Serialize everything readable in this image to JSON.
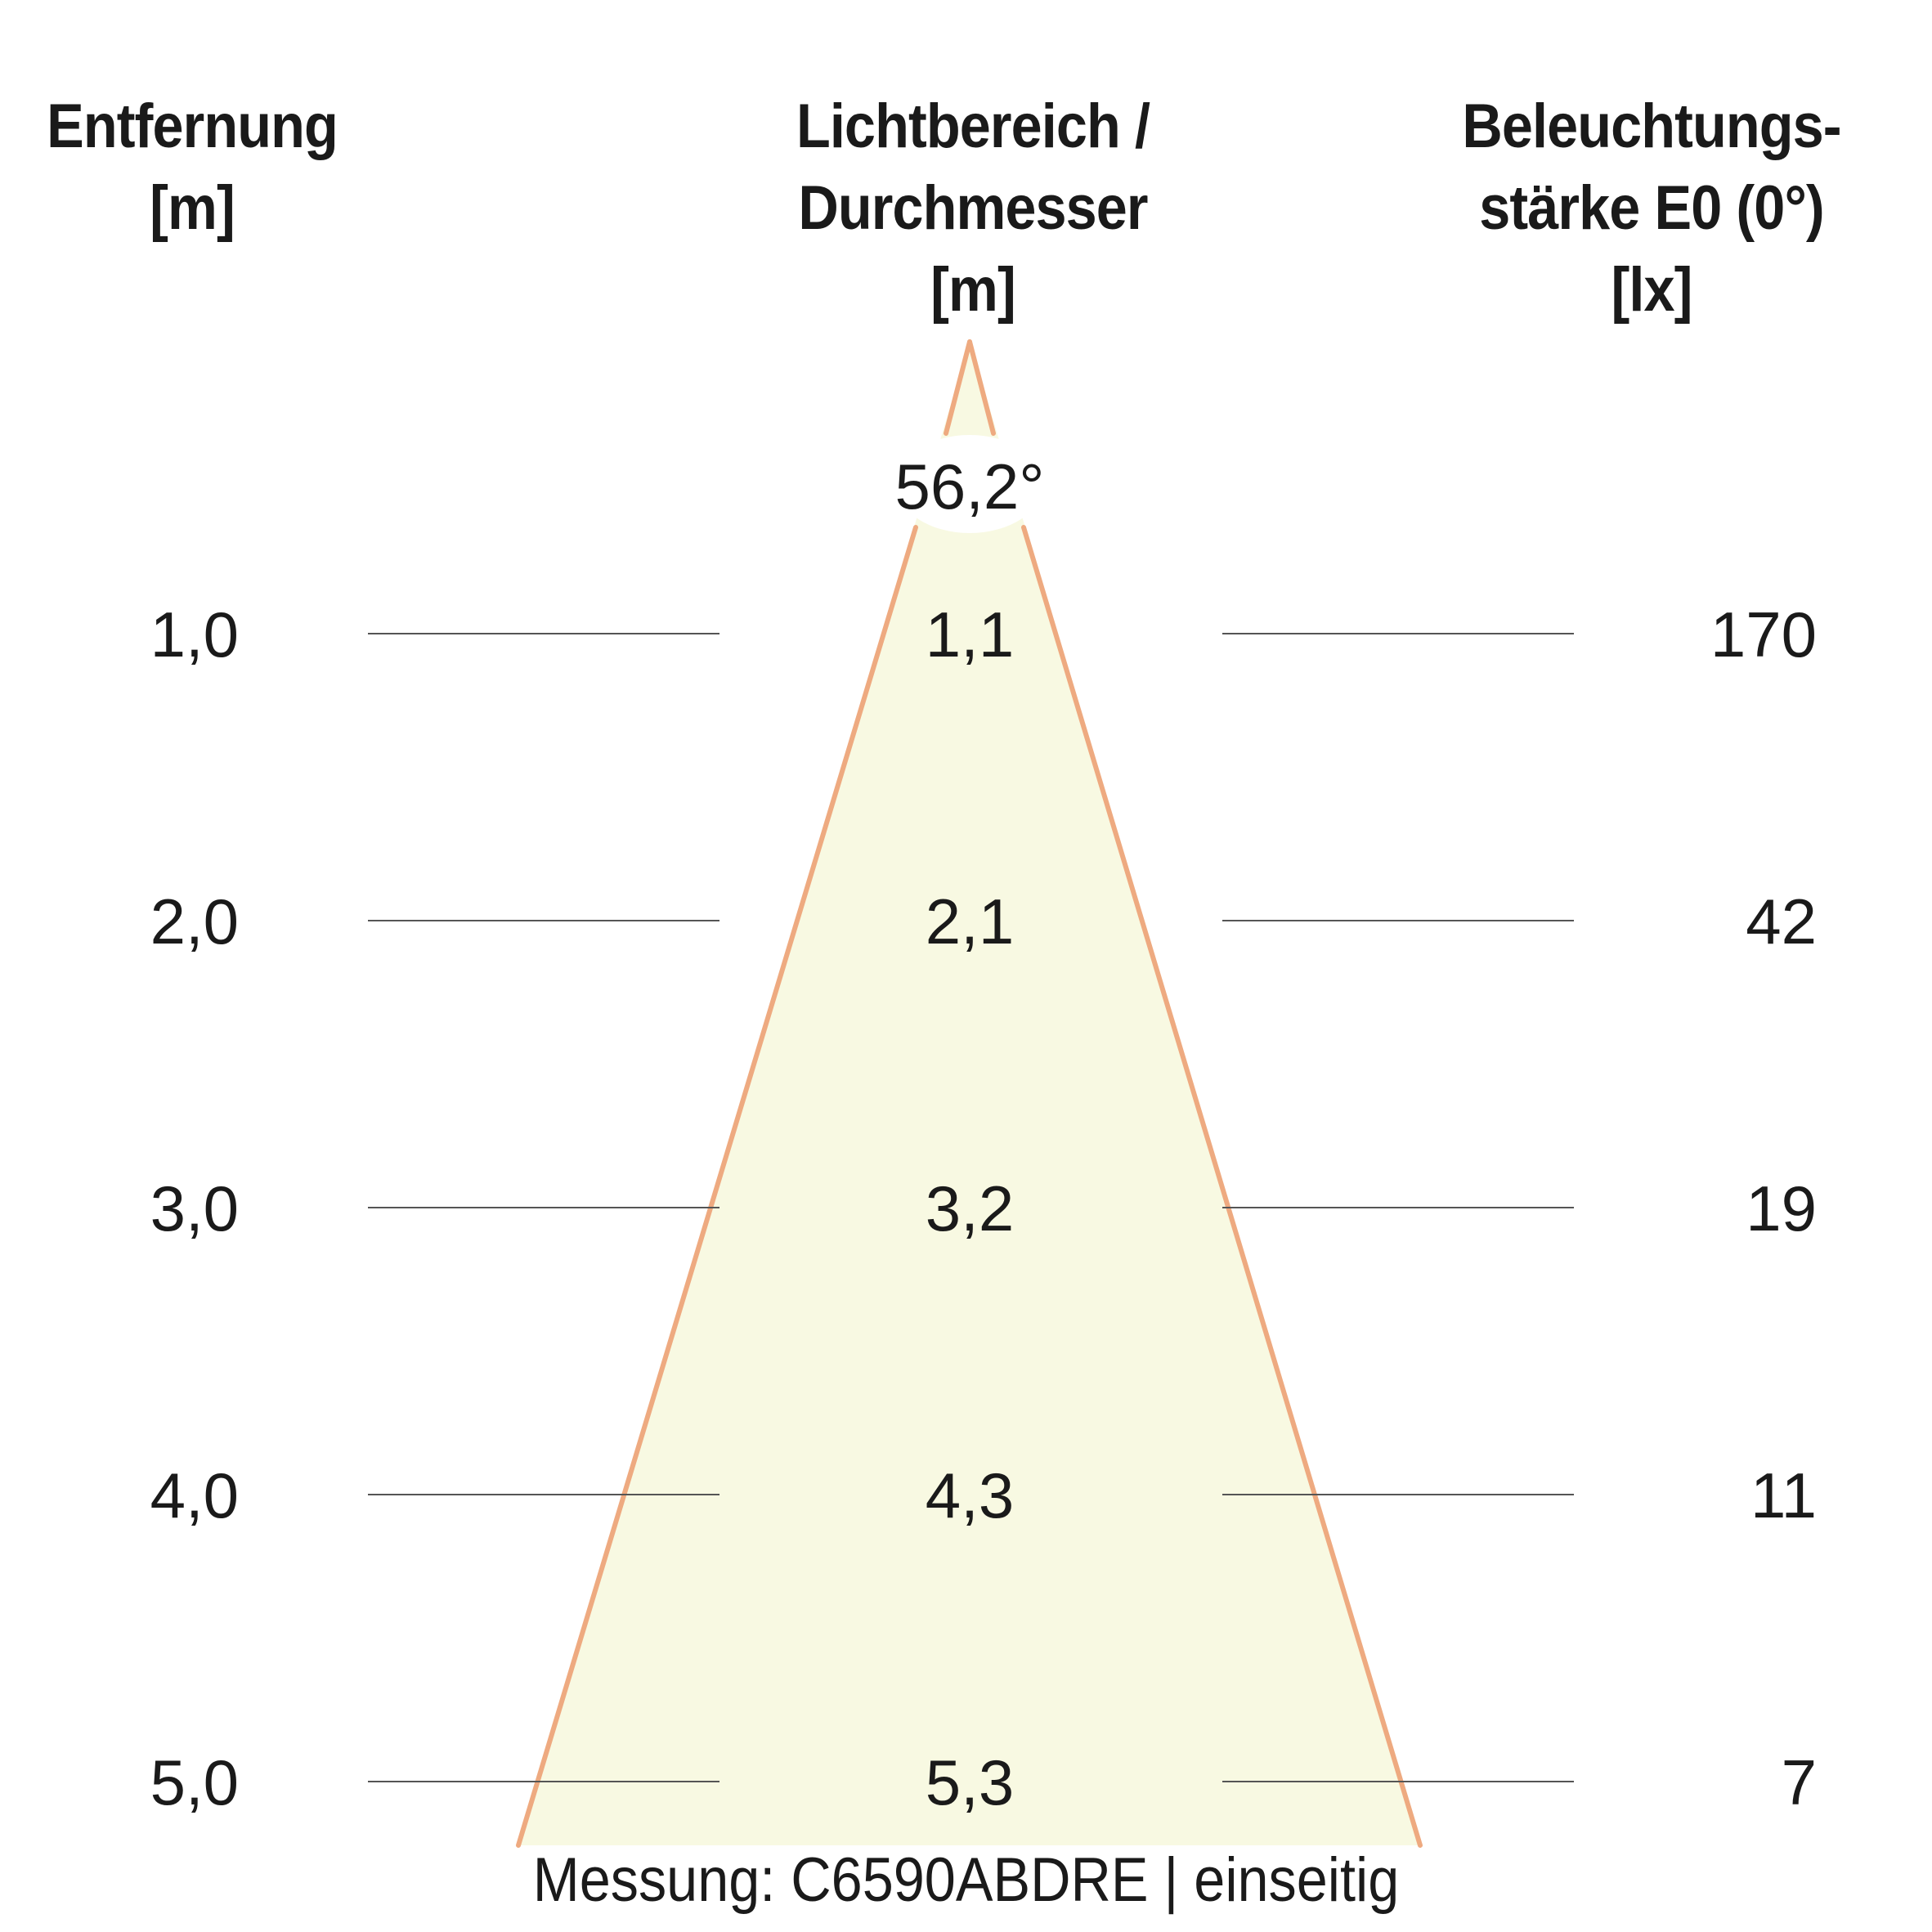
{
  "headers": {
    "distance": [
      "Entfernung",
      "[m]"
    ],
    "diameter": [
      "Lichtbereich /",
      "Durchmesser",
      "[m]"
    ],
    "illuminance": [
      "Beleuchtungs-",
      "stärke E0 (0°)",
      "[lx]"
    ]
  },
  "beam_angle": "56,2°",
  "rows": [
    {
      "distance": "1,0",
      "diameter": "1,1",
      "illuminance": "170"
    },
    {
      "distance": "2,0",
      "diameter": "2,1",
      "illuminance": "42"
    },
    {
      "distance": "3,0",
      "diameter": "3,2",
      "illuminance": "19"
    },
    {
      "distance": "4,0",
      "diameter": "4,3",
      "illuminance": "11"
    },
    {
      "distance": "5,0",
      "diameter": "5,3",
      "illuminance": "7"
    }
  ],
  "footer": "Messung: C6590ABDRE | einseitig",
  "colors": {
    "cone_fill": "#f8f9e2",
    "cone_stroke": "#eeaa80",
    "guide_line": "#555555",
    "text": "#1a1a1a"
  }
}
